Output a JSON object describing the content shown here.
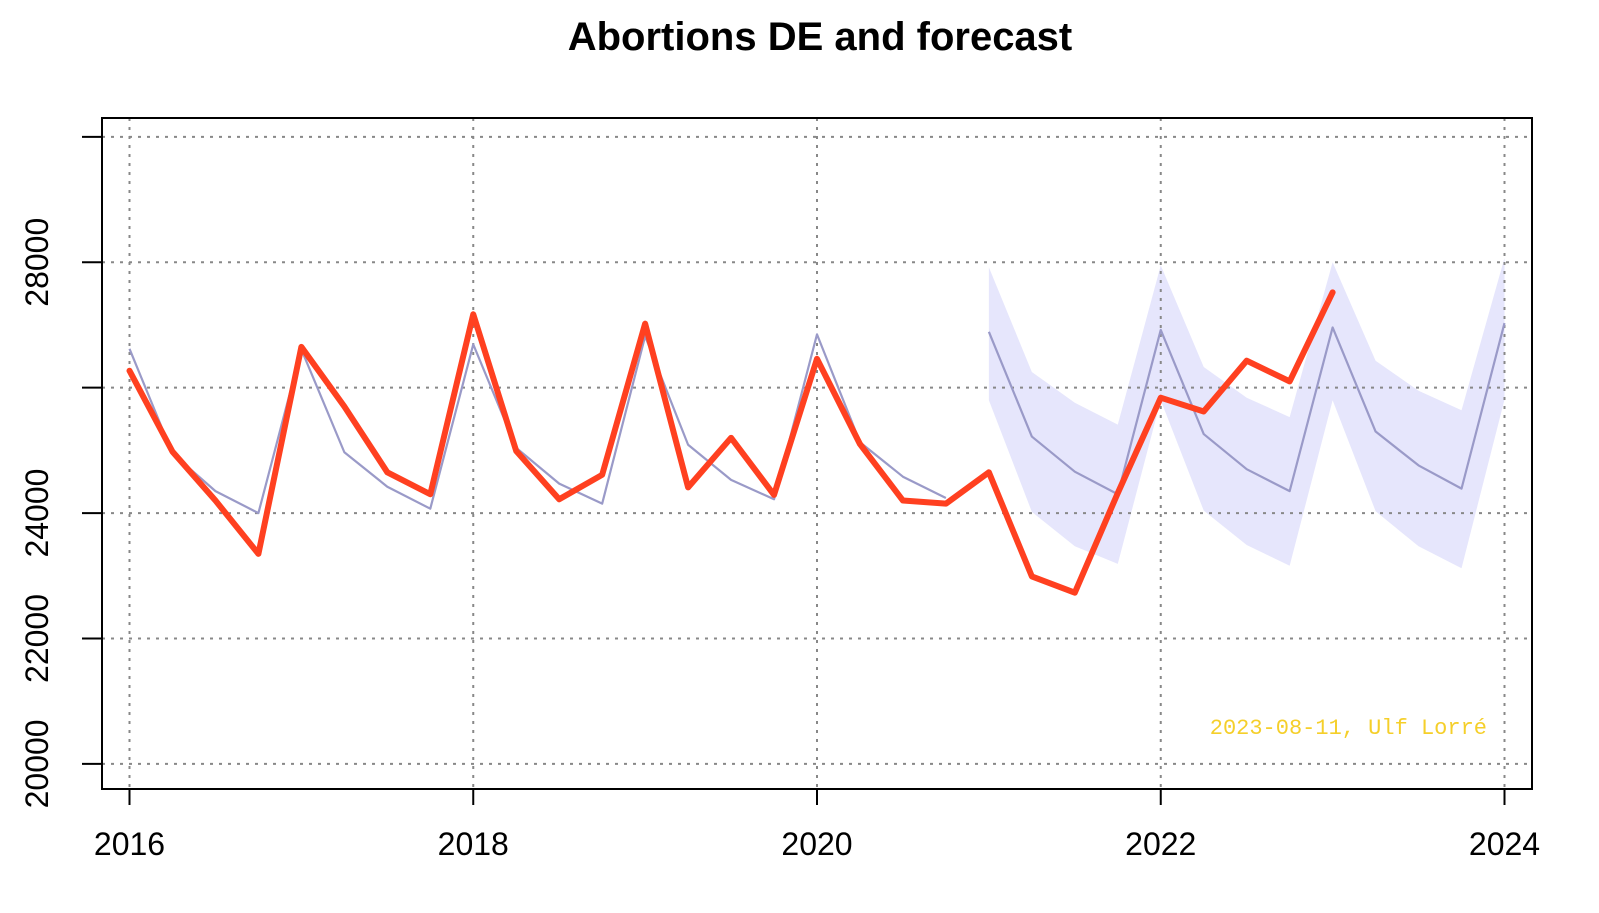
{
  "chart_data": {
    "type": "line",
    "title": "Abortions DE and forecast",
    "xlabel": "",
    "ylabel": "",
    "xlim": [
      2015.84,
      2024.16
    ],
    "ylim": [
      19600,
      30300
    ],
    "x_ticks": [
      {
        "value": 2016,
        "label": "2016"
      },
      {
        "value": 2018,
        "label": "2018"
      },
      {
        "value": 2020,
        "label": "2020"
      },
      {
        "value": 2022,
        "label": "2022"
      },
      {
        "value": 2024,
        "label": "2024"
      }
    ],
    "y_ticks": [
      {
        "value": 20000,
        "label": "20000"
      },
      {
        "value": 22000,
        "label": "22000"
      },
      {
        "value": 24000,
        "label": "24000"
      },
      {
        "value": 28000,
        "label": "28000"
      }
    ],
    "y_grid": [
      20000,
      22000,
      24000,
      26000,
      28000,
      30000
    ],
    "x_grid": [
      2016,
      2018,
      2020,
      2022,
      2024
    ],
    "grid": true,
    "grid_style": "dotted",
    "colors": {
      "actual": "#ff4020",
      "fitted": "#9a9ac8",
      "band": "#e6e6fc",
      "grid": "#888888",
      "watermark": "#f5cf2a"
    },
    "annotation": "2023-08-11, Ulf Lorré",
    "series": [
      {
        "role": "actual",
        "x": [
          2016.0,
          2016.25,
          2016.5,
          2016.75,
          2017.0,
          2017.25,
          2017.5,
          2017.75,
          2018.0,
          2018.25,
          2018.5,
          2018.75,
          2019.0,
          2019.25,
          2019.5,
          2019.75,
          2020.0,
          2020.25,
          2020.5,
          2020.75,
          2021.0,
          2021.25,
          2021.5,
          2021.75,
          2022.0,
          2022.25,
          2022.5,
          2022.75,
          2023.0
        ],
        "values": [
          26270,
          24980,
          24200,
          23350,
          26650,
          25700,
          24650,
          24300,
          27170,
          24990,
          24220,
          24610,
          27020,
          24410,
          25200,
          24290,
          26460,
          25100,
          24200,
          24150,
          24650,
          22990,
          22730,
          24320,
          25840,
          25620,
          26430,
          26100,
          27520
        ]
      },
      {
        "role": "fitted",
        "x": [
          2016.0,
          2016.25,
          2016.5,
          2016.75,
          2017.0,
          2017.25,
          2017.5,
          2017.75,
          2018.0,
          2018.25,
          2018.5,
          2018.75,
          2019.0,
          2019.25,
          2019.5,
          2019.75,
          2020.0,
          2020.25,
          2020.5,
          2020.75
        ],
        "values": [
          26620,
          24950,
          24350,
          24000,
          26610,
          24970,
          24420,
          24070,
          26690,
          25040,
          24470,
          24150,
          26820,
          25090,
          24530,
          24220,
          26850,
          25130,
          24580,
          24240
        ]
      },
      {
        "role": "forecast",
        "x": [
          2021.0,
          2021.25,
          2021.5,
          2021.75,
          2022.0,
          2022.25,
          2022.5,
          2022.75,
          2023.0,
          2023.25,
          2023.5,
          2023.75,
          2024.0
        ],
        "values": [
          26890,
          25220,
          24660,
          24300,
          26920,
          25260,
          24700,
          24350,
          26960,
          25300,
          24760,
          24390,
          27030
        ],
        "lower": [
          25800,
          24020,
          23470,
          23190,
          25800,
          24040,
          23490,
          23160,
          25800,
          24030,
          23470,
          23120,
          25810
        ],
        "upper": [
          27920,
          26250,
          25760,
          25410,
          27950,
          26330,
          25840,
          25530,
          28000,
          26430,
          25950,
          25640,
          28070
        ]
      }
    ]
  }
}
